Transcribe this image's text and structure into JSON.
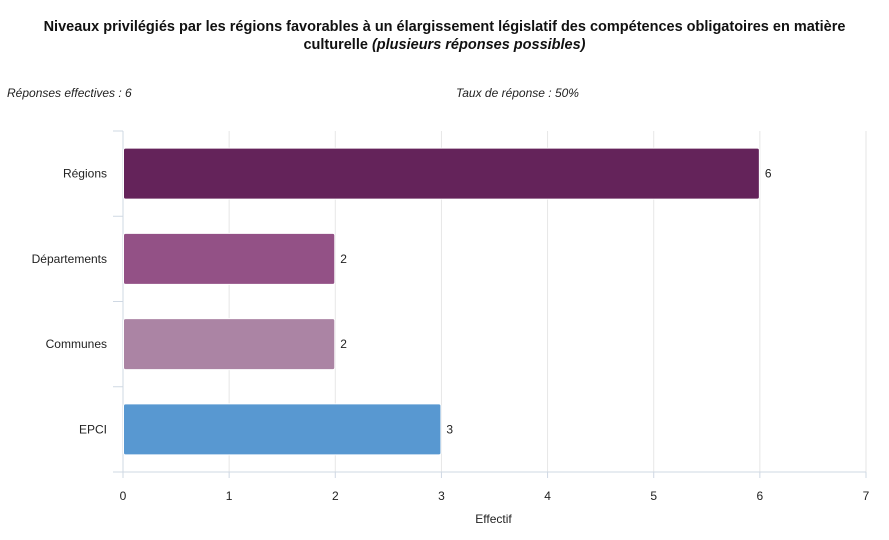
{
  "header": {
    "title_line1": "Niveaux privilégiés par les régions favorables à un élargissement législatif des compétences obligatoires en matière",
    "title_line2_normal": "culturelle ",
    "title_line2_italic": "(plusieurs réponses possibles)"
  },
  "meta": {
    "responses": "Réponses effectives : 6",
    "rate": "Taux de réponse : 50%"
  },
  "chart_data": {
    "type": "bar",
    "orientation": "horizontal",
    "categories": [
      "Régions",
      "Départements",
      "Communes",
      "EPCI"
    ],
    "values": [
      6,
      2,
      2,
      3
    ],
    "colors": [
      "#64235a",
      "#935186",
      "#ab84a4",
      "#5898d1"
    ],
    "xlabel": "Effectif",
    "ylabel": "",
    "xlim": [
      0,
      7
    ],
    "xticks": [
      "0",
      "1",
      "2",
      "3",
      "4",
      "5",
      "6",
      "7"
    ],
    "grid": "vertical",
    "value_labels": [
      "6",
      "2",
      "2",
      "3"
    ]
  }
}
